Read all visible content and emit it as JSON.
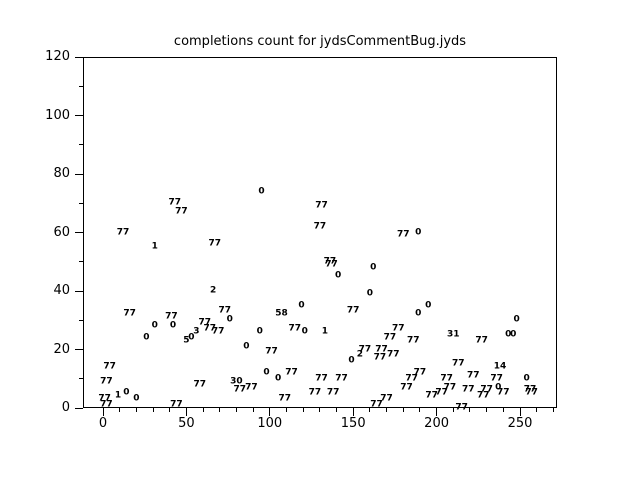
{
  "title": "completions count for jydsCommentBug.jyds",
  "colors": {
    "background": "#ffffff",
    "axis": "#000000",
    "text": "#000000",
    "point_label": "#000000"
  },
  "chart_data": {
    "type": "scatter",
    "title": "completions count for jydsCommentBug.jyds",
    "xlabel": "",
    "ylabel": "",
    "xlim": [
      0,
      270
    ],
    "ylim": [
      0,
      120
    ],
    "grid": false,
    "legend": "none",
    "marker_style": "numeric-text-labels",
    "x_axis": {
      "major_ticks": [
        0,
        50,
        100,
        150,
        200,
        250
      ],
      "minor_step": 10,
      "minor_max": 270
    },
    "y_axis": {
      "major_ticks": [
        0,
        20,
        40,
        60,
        80,
        100,
        120
      ],
      "minor_step": 10,
      "minor_max": 120
    },
    "points": [
      {
        "x": 1,
        "y": 3,
        "v": "77"
      },
      {
        "x": 2,
        "y": 1,
        "v": "77"
      },
      {
        "x": 2,
        "y": 9,
        "v": "77"
      },
      {
        "x": 4,
        "y": 14,
        "v": "77"
      },
      {
        "x": 9,
        "y": 4,
        "v": "1"
      },
      {
        "x": 14,
        "y": 5,
        "v": "0"
      },
      {
        "x": 20,
        "y": 3,
        "v": "0"
      },
      {
        "x": 12,
        "y": 60,
        "v": "77"
      },
      {
        "x": 16,
        "y": 32,
        "v": "77"
      },
      {
        "x": 26,
        "y": 24,
        "v": "0"
      },
      {
        "x": 31,
        "y": 28,
        "v": "0"
      },
      {
        "x": 31,
        "y": 55,
        "v": "1"
      },
      {
        "x": 41,
        "y": 31,
        "v": "77"
      },
      {
        "x": 42,
        "y": 28,
        "v": "0"
      },
      {
        "x": 43,
        "y": 70,
        "v": "77"
      },
      {
        "x": 47,
        "y": 67,
        "v": "77"
      },
      {
        "x": 44,
        "y": 1,
        "v": "77"
      },
      {
        "x": 50,
        "y": 23,
        "v": "5"
      },
      {
        "x": 53,
        "y": 24,
        "v": "0"
      },
      {
        "x": 56,
        "y": 26,
        "v": "3"
      },
      {
        "x": 58,
        "y": 8,
        "v": "77"
      },
      {
        "x": 61,
        "y": 29,
        "v": "77"
      },
      {
        "x": 64,
        "y": 27,
        "v": "77"
      },
      {
        "x": 66,
        "y": 40,
        "v": "2"
      },
      {
        "x": 67,
        "y": 56,
        "v": "77"
      },
      {
        "x": 69,
        "y": 26,
        "v": "77"
      },
      {
        "x": 73,
        "y": 33,
        "v": "77"
      },
      {
        "x": 76,
        "y": 30,
        "v": "0"
      },
      {
        "x": 80,
        "y": 9,
        "v": "30"
      },
      {
        "x": 82,
        "y": 6,
        "v": "77"
      },
      {
        "x": 86,
        "y": 21,
        "v": "0"
      },
      {
        "x": 89,
        "y": 7,
        "v": "77"
      },
      {
        "x": 94,
        "y": 26,
        "v": "0"
      },
      {
        "x": 95,
        "y": 74,
        "v": "0"
      },
      {
        "x": 98,
        "y": 12,
        "v": "0"
      },
      {
        "x": 101,
        "y": 19,
        "v": "77"
      },
      {
        "x": 105,
        "y": 10,
        "v": "0"
      },
      {
        "x": 109,
        "y": 3,
        "v": "77"
      },
      {
        "x": 107,
        "y": 32,
        "v": "58"
      },
      {
        "x": 113,
        "y": 12,
        "v": "77"
      },
      {
        "x": 115,
        "y": 27,
        "v": "77"
      },
      {
        "x": 119,
        "y": 35,
        "v": "0"
      },
      {
        "x": 121,
        "y": 26,
        "v": "0"
      },
      {
        "x": 127,
        "y": 5,
        "v": "77"
      },
      {
        "x": 130,
        "y": 62,
        "v": "77"
      },
      {
        "x": 131,
        "y": 69,
        "v": "77"
      },
      {
        "x": 131,
        "y": 10,
        "v": "77"
      },
      {
        "x": 133,
        "y": 26,
        "v": "1"
      },
      {
        "x": 136,
        "y": 50,
        "v": "77"
      },
      {
        "x": 137,
        "y": 49,
        "v": "77"
      },
      {
        "x": 138,
        "y": 5,
        "v": "77"
      },
      {
        "x": 141,
        "y": 45,
        "v": "0"
      },
      {
        "x": 143,
        "y": 10,
        "v": "77"
      },
      {
        "x": 149,
        "y": 16,
        "v": "0"
      },
      {
        "x": 150,
        "y": 33,
        "v": "77"
      },
      {
        "x": 154,
        "y": 18,
        "v": "2"
      },
      {
        "x": 157,
        "y": 20,
        "v": "77"
      },
      {
        "x": 160,
        "y": 39,
        "v": "0"
      },
      {
        "x": 162,
        "y": 48,
        "v": "0"
      },
      {
        "x": 164,
        "y": 1,
        "v": "77"
      },
      {
        "x": 166,
        "y": 17,
        "v": "77"
      },
      {
        "x": 167,
        "y": 20,
        "v": "77"
      },
      {
        "x": 170,
        "y": 3,
        "v": "77"
      },
      {
        "x": 172,
        "y": 24,
        "v": "77"
      },
      {
        "x": 174,
        "y": 18,
        "v": "77"
      },
      {
        "x": 177,
        "y": 27,
        "v": "77"
      },
      {
        "x": 180,
        "y": 59,
        "v": "77"
      },
      {
        "x": 182,
        "y": 7,
        "v": "77"
      },
      {
        "x": 185,
        "y": 10,
        "v": "77"
      },
      {
        "x": 186,
        "y": 23,
        "v": "77"
      },
      {
        "x": 189,
        "y": 60,
        "v": "0"
      },
      {
        "x": 189,
        "y": 32,
        "v": "0"
      },
      {
        "x": 190,
        "y": 12,
        "v": "77"
      },
      {
        "x": 195,
        "y": 35,
        "v": "0"
      },
      {
        "x": 197,
        "y": 4,
        "v": "77"
      },
      {
        "x": 203,
        "y": 5,
        "v": "77"
      },
      {
        "x": 206,
        "y": 10,
        "v": "77"
      },
      {
        "x": 208,
        "y": 7,
        "v": "77"
      },
      {
        "x": 210,
        "y": 25,
        "v": "31"
      },
      {
        "x": 213,
        "y": 15,
        "v": "77"
      },
      {
        "x": 215,
        "y": 0,
        "v": "77"
      },
      {
        "x": 219,
        "y": 6,
        "v": "77"
      },
      {
        "x": 222,
        "y": 11,
        "v": "77"
      },
      {
        "x": 227,
        "y": 23,
        "v": "77"
      },
      {
        "x": 228,
        "y": 4,
        "v": "77"
      },
      {
        "x": 230,
        "y": 6,
        "v": "77"
      },
      {
        "x": 236,
        "y": 10,
        "v": "77"
      },
      {
        "x": 237,
        "y": 7,
        "v": "0"
      },
      {
        "x": 238,
        "y": 14,
        "v": "14"
      },
      {
        "x": 240,
        "y": 5,
        "v": "77"
      },
      {
        "x": 243,
        "y": 25,
        "v": "0"
      },
      {
        "x": 246,
        "y": 25,
        "v": "0"
      },
      {
        "x": 248,
        "y": 30,
        "v": "0"
      },
      {
        "x": 254,
        "y": 10,
        "v": "0"
      },
      {
        "x": 256,
        "y": 6,
        "v": "77"
      },
      {
        "x": 257,
        "y": 5,
        "v": "77"
      }
    ]
  }
}
